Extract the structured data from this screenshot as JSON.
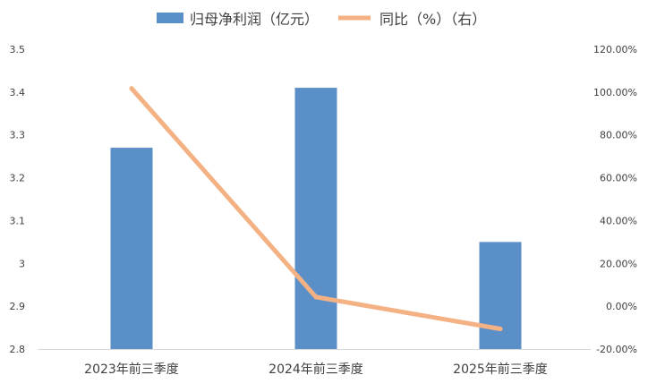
{
  "chart_data": {
    "type": "bar",
    "categories": [
      "2023年前三季度",
      "2024年前三季度",
      "2025年前三季度"
    ],
    "series": [
      {
        "name": "归母净利润（亿元）",
        "type": "bar",
        "axis": "left",
        "color": "#5B8FC7",
        "values": [
          3.27,
          3.41,
          3.05
        ]
      },
      {
        "name": "同比（%）（右）",
        "type": "line",
        "axis": "right",
        "color": "#F4B183",
        "values": [
          101.7,
          4.3,
          -10.6
        ]
      }
    ],
    "y_left": {
      "min": 2.8,
      "max": 3.5,
      "ticks": [
        2.8,
        2.9,
        3.0,
        3.1,
        3.2,
        3.3,
        3.4,
        3.5
      ],
      "tick_labels": [
        "2.8",
        "2.9",
        "3",
        "3.1",
        "3.2",
        "3.3",
        "3.4",
        "3.5"
      ]
    },
    "y_right": {
      "min": -20,
      "max": 120,
      "ticks": [
        -20,
        0,
        20,
        40,
        60,
        80,
        100,
        120
      ],
      "tick_labels": [
        "-20.00%",
        "0.00%",
        "20.00%",
        "40.00%",
        "60.00%",
        "80.00%",
        "100.00%",
        "120.00%"
      ]
    },
    "legend_position": "top",
    "grid": false
  }
}
